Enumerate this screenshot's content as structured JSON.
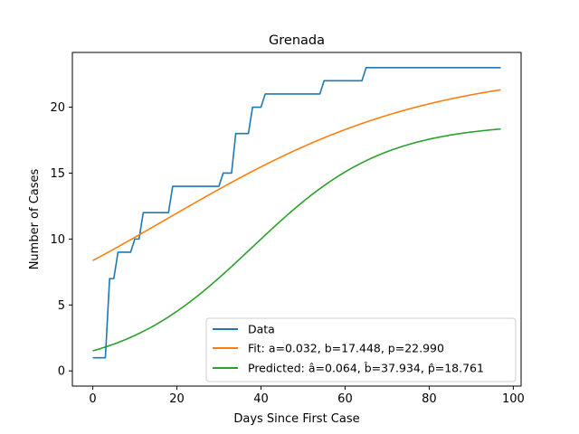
{
  "chart_data": {
    "type": "line",
    "title": "Grenada",
    "xlabel": "Days Since First Case",
    "ylabel": "Number of Cases",
    "xlim": [
      -4.85,
      101.85
    ],
    "ylim": [
      -1.15,
      24.15
    ],
    "xticks": [
      0,
      20,
      40,
      60,
      80,
      100
    ],
    "yticks": [
      0,
      5,
      10,
      15,
      20
    ],
    "grid": false,
    "legend_position": "lower-right",
    "series": [
      {
        "name": "Data",
        "color": "#1f77b4",
        "kind": "step",
        "x": [
          0,
          3,
          4,
          5,
          6,
          7,
          8,
          9,
          10,
          11,
          12,
          13,
          14,
          15,
          16,
          17,
          18,
          19,
          20,
          21,
          22,
          23,
          24,
          25,
          26,
          27,
          28,
          29,
          30,
          31,
          32,
          33,
          34,
          35,
          36,
          37,
          38,
          39,
          40,
          41,
          42,
          43,
          44,
          45,
          46,
          47,
          48,
          49,
          50,
          51,
          52,
          53,
          54,
          55,
          56,
          57,
          58,
          59,
          60,
          61,
          62,
          63,
          64,
          65,
          66,
          67,
          68,
          69,
          70,
          71,
          72,
          73,
          74,
          75,
          76,
          77,
          78,
          79,
          80,
          81,
          82,
          83,
          84,
          85,
          86,
          87,
          88,
          89,
          90,
          91,
          92,
          93,
          94,
          95,
          96,
          97
        ],
        "y": [
          1,
          1,
          7,
          7,
          9,
          9,
          9,
          9,
          10,
          10,
          12,
          12,
          12,
          12,
          12,
          12,
          12,
          14,
          14,
          14,
          14,
          14,
          14,
          14,
          14,
          14,
          14,
          14,
          14,
          15,
          15,
          15,
          18,
          18,
          18,
          18,
          20,
          20,
          20,
          21,
          21,
          21,
          21,
          21,
          21,
          21,
          21,
          21,
          21,
          21,
          21,
          21,
          21,
          22,
          22,
          22,
          22,
          22,
          22,
          22,
          22,
          22,
          22,
          23,
          23,
          23,
          23,
          23,
          23,
          23,
          23,
          23,
          23,
          23,
          23,
          23,
          23,
          23,
          23,
          23,
          23,
          23,
          23,
          23,
          23,
          23,
          23,
          23,
          23,
          23,
          23,
          23,
          23,
          23,
          23,
          23
        ]
      },
      {
        "name": "Fit: a=0.032, b=17.448, p=22.990",
        "color": "#ff7f0e",
        "kind": "logistic",
        "params": {
          "a": 0.032,
          "b": 17.448,
          "p": 22.99
        },
        "x_range": [
          0,
          97
        ]
      },
      {
        "name": "Predicted: â=0.064, b̂=37.934, p̂=18.761",
        "color": "#2ca02c",
        "kind": "logistic",
        "params": {
          "a": 0.064,
          "b": 37.934,
          "p": 18.761
        },
        "x_range": [
          0,
          97
        ]
      }
    ]
  }
}
